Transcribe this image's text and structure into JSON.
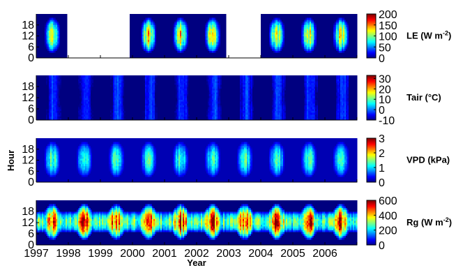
{
  "chart_data": {
    "type": "heatmap",
    "xlabel": "Year",
    "ylabel": "Hour",
    "x_ticks": [
      "1997",
      "1998",
      "1999",
      "2000",
      "2001",
      "2002",
      "2003",
      "2004",
      "2005",
      "2006"
    ],
    "xlim": [
      1997.0,
      2007.0
    ],
    "y_ticks": [
      0,
      6,
      12,
      18
    ],
    "ylim": [
      0,
      24
    ],
    "colormap": "jet",
    "panels": [
      {
        "id": "le",
        "label": "LE (W m",
        "label_sup": "-2",
        "label_end": ")",
        "clim": [
          0,
          200
        ],
        "cbar_ticks": [
          0,
          50,
          100,
          150,
          200
        ],
        "peak_level": 0.62,
        "night_level": 0.0,
        "data_gaps": [
          [
            1997.95,
            1999.92
          ],
          [
            2002.92,
            2004.0
          ]
        ]
      },
      {
        "id": "tair",
        "label": "Tair (°C)",
        "clim": [
          -10,
          33
        ],
        "cbar_ticks": [
          -10,
          0,
          10,
          20,
          30
        ],
        "summer_day": 24,
        "winter_night": -2,
        "data_gaps": []
      },
      {
        "id": "vpd",
        "label": "VPD (kPa)",
        "clim": [
          0,
          3
        ],
        "cbar_ticks": [
          0,
          1,
          2,
          3
        ],
        "peak_level": 0.45,
        "night_level": 0.05,
        "data_gaps": []
      },
      {
        "id": "rg",
        "label": "Rg (W m",
        "label_sup": "-2",
        "label_end": ")",
        "clim": [
          0,
          600
        ],
        "cbar_ticks": [
          0,
          200,
          400,
          600
        ],
        "peak_level": 0.85,
        "night_level": 0.0,
        "data_gaps": []
      }
    ]
  }
}
